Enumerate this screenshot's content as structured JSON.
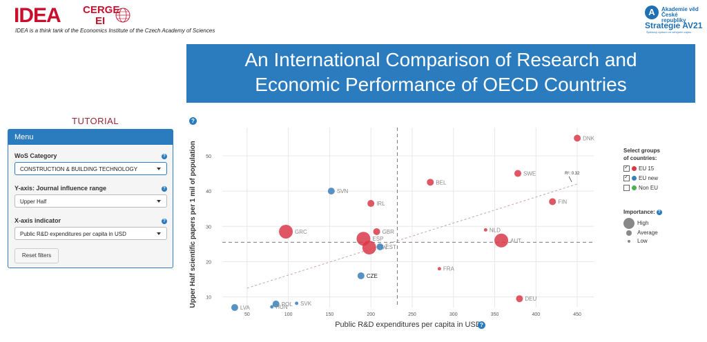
{
  "header": {
    "logo_main": "IDEA",
    "logo_cerge": "CERGE",
    "logo_ei": "EI",
    "tagline": "IDEA is a think tank of the Economics Institute of the Czech Academy of Sciences",
    "partner_logo": {
      "letter": "A",
      "line1": "Akademie věd",
      "line2": "České republiky",
      "title": "Strategie AV21",
      "subtitle": "Špičkový výzkum ve veřejném zájmu"
    }
  },
  "banner": {
    "line1": "An International Comparison of Research and",
    "line2": "Economic Performance of OECD Countries"
  },
  "sidebar": {
    "tutorial_label": "TUTORIAL",
    "menu_title": "Menu",
    "wos_label": "WoS Category",
    "wos_value": "CONSTRUCTION & BUILDING TECHNOLOGY",
    "yaxis_label": "Y-axis: Journal influence range",
    "yaxis_value": "Upper Half",
    "xaxis_label": "X-axis indicator",
    "xaxis_value": "Public R&D expenditures per capita in USD",
    "reset_label": "Reset filters",
    "help_glyph": "?"
  },
  "legend": {
    "groups_title_1": "Select groups",
    "groups_title_2": "of countries:",
    "groups": [
      {
        "label": "EU 15",
        "color": "#d93a49",
        "checked": true
      },
      {
        "label": "EU new",
        "color": "#3a7fb8",
        "checked": true
      },
      {
        "label": "Non EU",
        "color": "#4caf50",
        "checked": false
      }
    ],
    "importance_title": "Importance:",
    "importance": [
      "High",
      "Average",
      "Low"
    ]
  },
  "chart_data": {
    "type": "scatter",
    "xlabel": "Public R&D expenditures per capita in USD",
    "ylabel": "Upper Half scientific papers per 1 mil of population",
    "xlim": [
      20,
      470
    ],
    "ylim": [
      7,
      58
    ],
    "xticks": [
      50,
      100,
      150,
      200,
      250,
      300,
      350,
      400,
      450
    ],
    "yticks": [
      10,
      20,
      30,
      40,
      50
    ],
    "grid": true,
    "mean_x": 232,
    "mean_y": 25.5,
    "r2_label": "R²: 0.32",
    "trend": {
      "x1": 50,
      "y1": 12.5,
      "x2": 450,
      "y2": 42
    },
    "points": [
      {
        "label": "DNK",
        "x": 450,
        "y": 55,
        "group": "EU 15",
        "size": 2
      },
      {
        "label": "SWE",
        "x": 378,
        "y": 45,
        "group": "EU 15",
        "size": 2
      },
      {
        "label": "BEL",
        "x": 272,
        "y": 42.5,
        "group": "EU 15",
        "size": 2
      },
      {
        "label": "FIN",
        "x": 420,
        "y": 37,
        "group": "EU 15",
        "size": 2
      },
      {
        "label": "SVN",
        "x": 152,
        "y": 40,
        "group": "EU new",
        "size": 2
      },
      {
        "label": "IRL",
        "x": 200,
        "y": 36.5,
        "group": "EU 15",
        "size": 2
      },
      {
        "label": "GRC",
        "x": 97,
        "y": 28.5,
        "group": "EU 15",
        "size": 4
      },
      {
        "label": "GBR",
        "x": 207,
        "y": 28.5,
        "group": "EU 15",
        "size": 2
      },
      {
        "label": "NLD",
        "x": 339,
        "y": 29,
        "group": "EU 15",
        "size": 1
      },
      {
        "label": "ESP",
        "x": 191,
        "y": 26.5,
        "group": "EU 15",
        "size": 4
      },
      {
        "label": "ITA",
        "x": 198,
        "y": 24,
        "group": "EU 15",
        "size": 4
      },
      {
        "label": "EST",
        "x": 211,
        "y": 24.2,
        "group": "EU new",
        "size": 2
      },
      {
        "label": "AUT",
        "x": 358,
        "y": 26,
        "group": "EU 15",
        "size": 4
      },
      {
        "label": "FRA",
        "x": 283,
        "y": 18,
        "group": "EU 15",
        "size": 1
      },
      {
        "label": "CZE",
        "x": 188,
        "y": 16,
        "group": "EU new",
        "size": 2
      },
      {
        "label": "DEU",
        "x": 380,
        "y": 9.5,
        "group": "EU 15",
        "size": 2
      },
      {
        "label": "LVA",
        "x": 35,
        "y": 7,
        "group": "EU new",
        "size": 2
      },
      {
        "label": "POL",
        "x": 85,
        "y": 8,
        "group": "EU new",
        "size": 2
      },
      {
        "label": "HUN",
        "x": 80,
        "y": 7.2,
        "group": "EU new",
        "size": 1
      },
      {
        "label": "SVK",
        "x": 110,
        "y": 8.2,
        "group": "EU new",
        "size": 1
      }
    ]
  }
}
